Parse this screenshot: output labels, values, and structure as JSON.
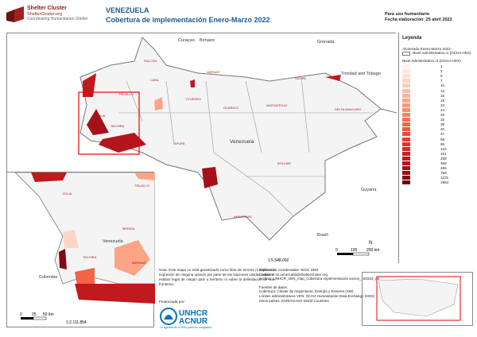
{
  "header": {
    "org_name": "Shelter Cluster",
    "org_url": "ShelterCluster.org",
    "org_tagline": "Coordinating Humanitarian Shelter",
    "title_country": "VENEZUELA",
    "title_main": "Cobertura de implementación Enero-Marzo 2022",
    "usage": "Para uso humanitario",
    "date": "Fecha elaboración: 25 abril 2022"
  },
  "map": {
    "countries": [
      "Curaçao",
      "Bonaire",
      "Grenada",
      "Trinidad and Tobago",
      "Venezuela",
      "Guyana",
      "Brazil",
      "Colombia"
    ],
    "states": [
      "FALCON",
      "LARA",
      "VARGAS",
      "SUCRE",
      "ZULIA",
      "TRUJILLO",
      "COJEDES",
      "GUARICO",
      "ANZOATEGUI",
      "DELTA AMACURO",
      "TACHIRA",
      "APURE",
      "BOLIVAR",
      "AMAZONAS",
      "MERIDA",
      "BARINAS"
    ],
    "scale_ratio": "1:5.548.092",
    "scale_ticks": [
      "0",
      "100",
      "200 km"
    ],
    "north": "N"
  },
  "inset": {
    "scale_ratio": "1:2.111.854",
    "scale_ticks": [
      "0",
      "25",
      "50 km"
    ],
    "labels": {
      "zulia": "ZULIA",
      "trujillo": "TRUJILLO",
      "merida": "MERIDA",
      "tachira": "TACHIRA",
      "barinas": "BARINAS",
      "venezuela": "Venezuela",
      "colombia": "Colombia"
    }
  },
  "legend": {
    "title": "Leyenda",
    "subtitle": "Alcanzado Enero-Marzo 2022",
    "admin1": "Nivel Administrativo=1 (OCHA HDX)",
    "admin2": "Nivel Administrativo=2 (OCHA HDX)",
    "classes": [
      {
        "value": "1",
        "color": "#fff1ec"
      },
      {
        "value": "2",
        "color": "#ffe8df"
      },
      {
        "value": "5",
        "color": "#fee0d2"
      },
      {
        "value": "7",
        "color": "#fdd6c5"
      },
      {
        "value": "10",
        "color": "#fdcbb6"
      },
      {
        "value": "13",
        "color": "#fcbea5"
      },
      {
        "value": "15",
        "color": "#fcb195"
      },
      {
        "value": "18",
        "color": "#fca486"
      },
      {
        "value": "23",
        "color": "#fc9777"
      },
      {
        "value": "24",
        "color": "#fb8a6a"
      },
      {
        "value": "26",
        "color": "#fb7d5d"
      },
      {
        "value": "32",
        "color": "#f97050"
      },
      {
        "value": "39",
        "color": "#f66445"
      },
      {
        "value": "40",
        "color": "#f2573b"
      },
      {
        "value": "47",
        "color": "#ee4a33"
      },
      {
        "value": "59",
        "color": "#e83f2d"
      },
      {
        "value": "95",
        "color": "#e0342a"
      },
      {
        "value": "122",
        "color": "#d62b26"
      },
      {
        "value": "161",
        "color": "#cb2222"
      },
      {
        "value": "258",
        "color": "#c0191e"
      },
      {
        "value": "359",
        "color": "#b4151c"
      },
      {
        "value": "465",
        "color": "#a5111a"
      },
      {
        "value": "758",
        "color": "#950e17"
      },
      {
        "value": "1231",
        "color": "#840a14"
      },
      {
        "value": "1964",
        "color": "#6e0510"
      }
    ]
  },
  "notes": {
    "disclaimer": "Nota: Este mapa no está garantizado como libre de errores ni implica la expresión de ninguna opinión por parte de las Naciones Unidas sobre el estatus legal de ningún país o territorio ni sobre la delimitación de sus fronteras.",
    "funded_by": "Financiada por:",
    "unhcr1": "UNHCR",
    "unhcr2": "ACNUR",
    "unhcr_tag": "La agencia de la ONU para los refugiados"
  },
  "info": {
    "crs": "Sistema de coordenadas: WGS 1984",
    "contact": "Contacto: im.venezuela@sheltercluster.org",
    "file": "Archivo: UNHCR_VEN_map_Cobertura implementación socios_150322_a3",
    "sources_title": "Fuentes de datos:",
    "coverage": "Cobertura: Clúster de Alojamiento, Energía y Enseres (SW)",
    "limits": "Límites administrativos VEN: OCHA Humanitarian Data Exchange (HDX)",
    "other": "Otros países: ESRI/ArcGIS World Countries"
  }
}
